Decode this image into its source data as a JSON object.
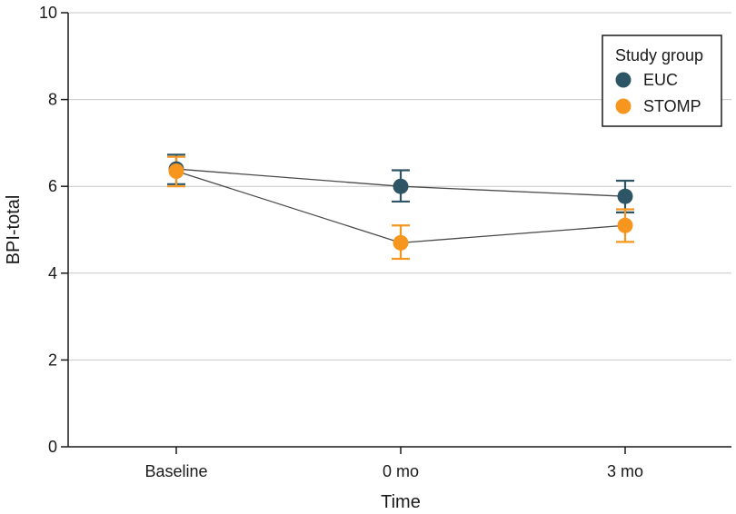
{
  "chart_data": {
    "type": "line",
    "categories": [
      "Baseline",
      "0 mo",
      "3 mo"
    ],
    "series": [
      {
        "name": "EUC",
        "color": "#2e5566",
        "values": [
          6.4,
          6.0,
          5.77
        ],
        "error_low": [
          6.05,
          5.65,
          5.4
        ],
        "error_high": [
          6.73,
          6.37,
          6.13
        ]
      },
      {
        "name": "STOMP",
        "color": "#f7961e",
        "values": [
          6.35,
          4.7,
          5.1
        ],
        "error_low": [
          6.0,
          4.33,
          4.72
        ],
        "error_high": [
          6.68,
          5.1,
          5.47
        ]
      }
    ],
    "xlabel": "Time",
    "ylabel": "BPI-total",
    "ylim": [
      0,
      10
    ],
    "yticks": [
      "0",
      "2",
      "4",
      "6",
      "8",
      "10"
    ],
    "grid": true,
    "legend": {
      "title": "Study group",
      "position": "top-right"
    }
  }
}
